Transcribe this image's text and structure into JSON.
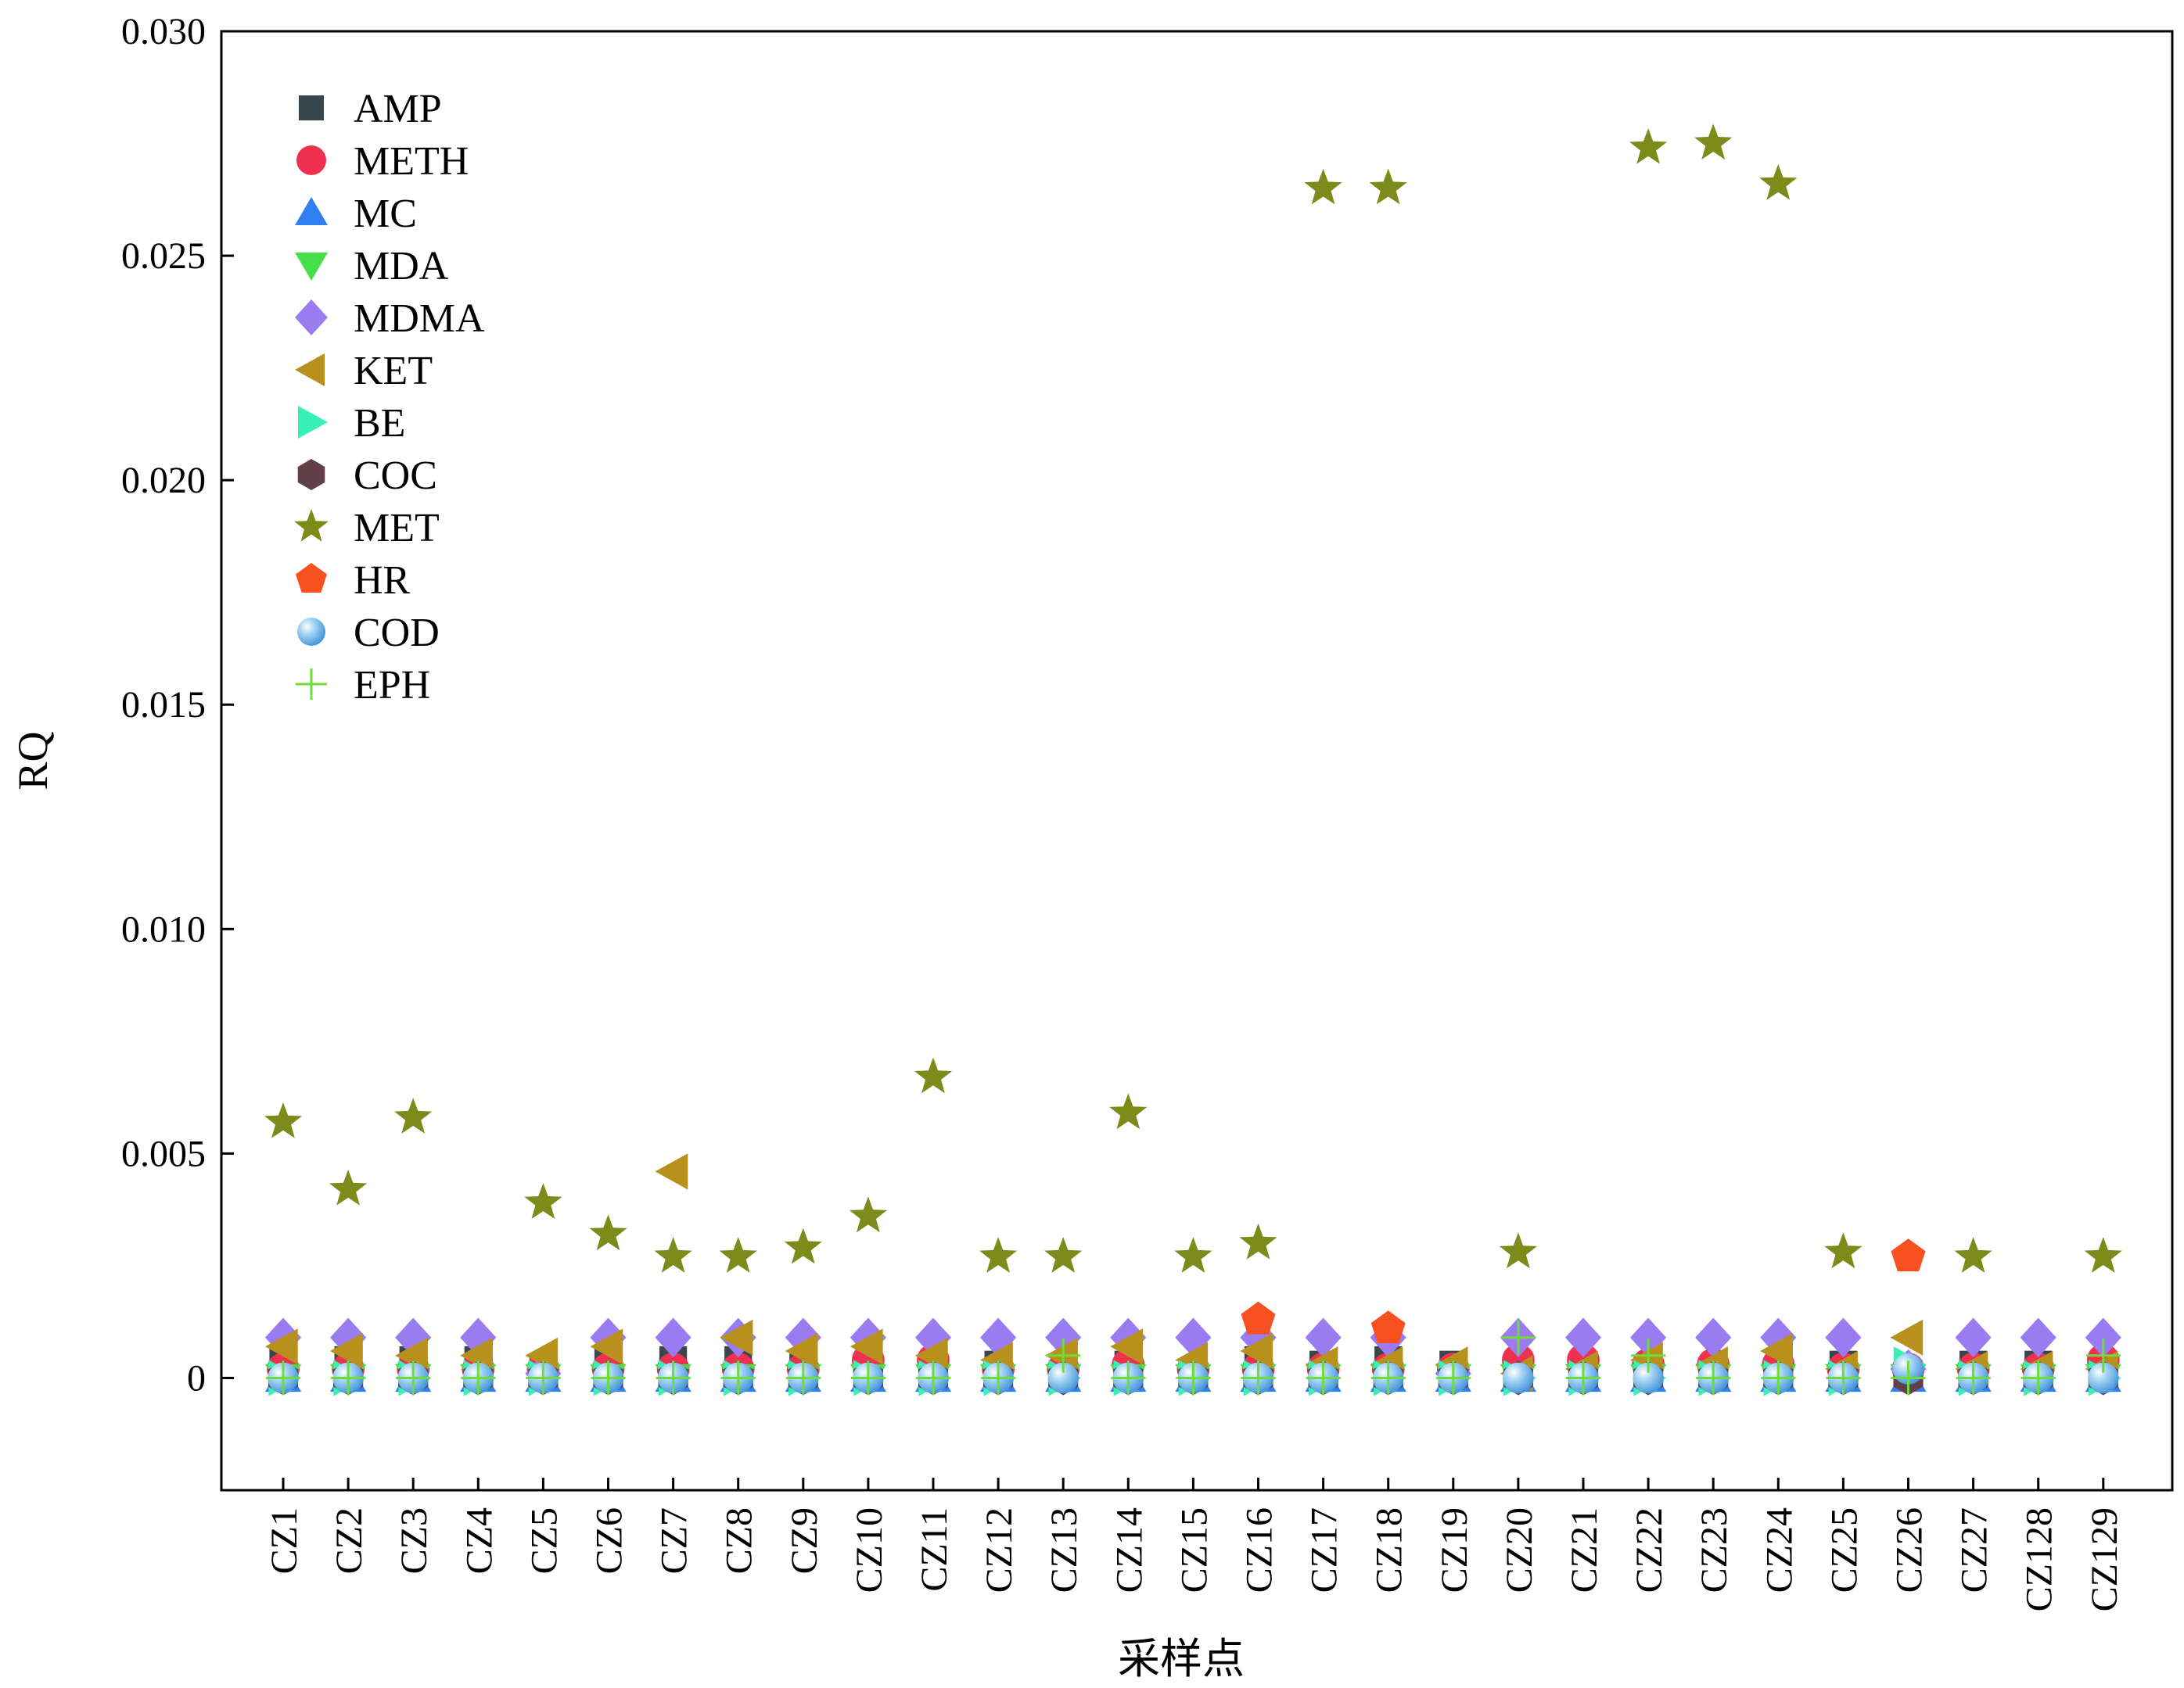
{
  "chart_data": {
    "type": "scatter",
    "xlabel": "采样点",
    "ylabel": "RQ",
    "ylim": [
      -0.0025,
      0.03
    ],
    "yticks": [
      0,
      0.005,
      0.01,
      0.015,
      0.02,
      0.025,
      0.03
    ],
    "ytick_labels": [
      "0",
      "0.005",
      "0.010",
      "0.015",
      "0.020",
      "0.025",
      "0.030"
    ],
    "categories": [
      "CZ1",
      "CZ2",
      "CZ3",
      "CZ4",
      "CZ5",
      "CZ6",
      "CZ7",
      "CZ8",
      "CZ9",
      "CZ10",
      "CZ11",
      "CZ12",
      "CZ13",
      "CZ14",
      "CZ15",
      "CZ16",
      "CZ17",
      "CZ18",
      "CZ19",
      "CZ20",
      "CZ21",
      "CZ22",
      "CZ23",
      "CZ24",
      "CZ25",
      "CZ26",
      "CZ27",
      "CZ128",
      "CZ129"
    ],
    "grid": false,
    "legend_position": "top-left",
    "series": [
      {
        "name": "AMP",
        "marker": "square",
        "color": "#3a464d",
        "values": [
          0.0004,
          0.0004,
          0.0004,
          0.0004,
          0.0002,
          0.0004,
          0.0004,
          0.0004,
          0.0003,
          0,
          0,
          0.0003,
          0,
          0.0003,
          0,
          0.0004,
          0.0003,
          0.0004,
          0.0003,
          0.0002,
          0,
          0.0001,
          0.0001,
          0.0002,
          0.0003,
          0.0001,
          0.0003,
          0.0003,
          0
        ]
      },
      {
        "name": "METH",
        "marker": "circle",
        "color": "#f0304f",
        "values": [
          0.0002,
          0.0002,
          0.0002,
          0.0002,
          0.0002,
          0.0002,
          0.0002,
          0.0002,
          0.0002,
          0.0004,
          0.0004,
          0.0002,
          0.0002,
          0.0003,
          0.0002,
          0.0002,
          0.0002,
          0.0002,
          0.0002,
          0.0004,
          0.0004,
          0.0003,
          0.0003,
          0.0003,
          0.0002,
          0.0002,
          0.0002,
          0.0002,
          0.0004
        ]
      },
      {
        "name": "MC",
        "marker": "triangle-up",
        "color": "#2f7ff0",
        "values": [
          0,
          0,
          0,
          0,
          0,
          0,
          0,
          0,
          0,
          0,
          0,
          0,
          0,
          0,
          0,
          0,
          0,
          0,
          0,
          0,
          0,
          0,
          0,
          0,
          0,
          0,
          0,
          0,
          0
        ]
      },
      {
        "name": "MDA",
        "marker": "triangle-down",
        "color": "#45e048",
        "values": [
          0,
          0,
          0,
          0,
          0,
          0,
          0,
          0,
          0,
          0,
          0,
          0,
          0,
          0,
          0,
          0,
          0,
          0,
          0,
          0,
          0,
          0,
          0,
          0,
          0,
          0,
          0,
          0,
          0
        ]
      },
      {
        "name": "MDMA",
        "marker": "diamond",
        "color": "#9a7cf0",
        "values": [
          0.0009,
          0.0009,
          0.0009,
          0.0009,
          0.0001,
          0.0009,
          0.0009,
          0.0009,
          0.0009,
          0.0009,
          0.0009,
          0.0009,
          0.0009,
          0.0009,
          0.0009,
          0.0009,
          0.0009,
          0.0009,
          0.0001,
          0.0009,
          0.0009,
          0.0009,
          0.0009,
          0.0009,
          0.0009,
          0.0002,
          0.0009,
          0.0009,
          0.0009
        ]
      },
      {
        "name": "KET",
        "marker": "triangle-left",
        "color": "#b8901e",
        "values": [
          0.0007,
          0.0006,
          0.0005,
          0.0005,
          0.0005,
          0.0007,
          0.0046,
          0.0009,
          0.0006,
          0.0007,
          0.0005,
          0.0004,
          0.0005,
          0.0007,
          0.0004,
          0.0006,
          0.0003,
          0.0003,
          0.0003,
          0.0001,
          0.0002,
          0.0004,
          0.0003,
          0.0006,
          0.0002,
          0.0009,
          0.0002,
          0.0002,
          0.0002
        ]
      },
      {
        "name": "BE",
        "marker": "triangle-right",
        "color": "#3af0b4",
        "values": [
          0,
          0,
          0,
          0,
          0,
          0,
          0,
          0,
          0,
          0,
          0,
          0,
          0,
          0,
          0,
          0,
          0,
          0,
          0,
          0,
          0,
          0,
          0,
          0,
          0,
          0.0003,
          0,
          0,
          0
        ]
      },
      {
        "name": "COC",
        "marker": "hexagon",
        "color": "#62404a",
        "values": [
          0,
          0,
          0,
          0,
          0,
          0,
          0,
          0,
          0,
          0,
          0,
          0,
          0,
          0,
          0,
          0,
          0,
          0,
          0,
          0,
          0,
          0,
          0,
          0,
          0,
          0,
          0,
          0,
          0
        ]
      },
      {
        "name": "MET",
        "marker": "star",
        "color": "#7d8b1a",
        "values": [
          0.0057,
          0.0042,
          0.0058,
          null,
          0.0039,
          0.0032,
          0.0027,
          0.0027,
          0.0029,
          0.0036,
          0.0067,
          0.0027,
          0.0027,
          0.0059,
          0.0027,
          0.003,
          0.0265,
          0.0265,
          null,
          0.0028,
          null,
          0.0274,
          0.0275,
          0.0266,
          0.0028,
          null,
          0.0027,
          null,
          0.0027
        ]
      },
      {
        "name": "HR",
        "marker": "pentagon",
        "color": "#f8501e",
        "values": [
          null,
          null,
          null,
          null,
          null,
          null,
          null,
          null,
          null,
          null,
          null,
          null,
          null,
          null,
          null,
          0.0013,
          null,
          0.0011,
          null,
          null,
          null,
          null,
          null,
          null,
          null,
          0.0027,
          null,
          null,
          null
        ]
      },
      {
        "name": "COD",
        "marker": "ball",
        "color": "#5aaee8",
        "values": [
          0,
          0,
          0,
          0,
          0,
          0,
          0,
          0,
          0,
          0,
          0,
          0,
          0,
          0,
          0,
          0,
          0,
          0,
          0,
          0,
          0,
          0,
          0,
          0,
          0,
          0.0002,
          0,
          0,
          0
        ]
      },
      {
        "name": "EPH",
        "marker": "plus",
        "color": "#6edc3a",
        "values": [
          0,
          0,
          0,
          0,
          0,
          0,
          0,
          0,
          0,
          0,
          0,
          0,
          0.0005,
          0,
          0,
          0,
          0,
          0,
          0,
          0.0009,
          0,
          0.0005,
          0,
          0,
          0,
          0,
          0,
          0,
          0.0005
        ]
      }
    ]
  }
}
